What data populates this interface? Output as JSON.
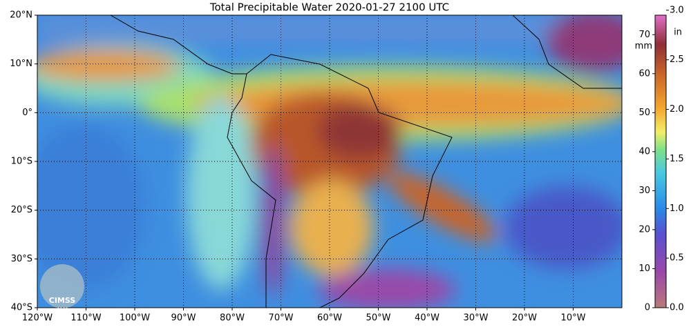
{
  "map": {
    "title": "Total Precipitable Water  2020-01-27 2100 UTC",
    "lonlim": [
      -120,
      0
    ],
    "latlim": [
      -40,
      20
    ],
    "lonticks": [
      {
        "value": -120,
        "label": "120°W"
      },
      {
        "value": -110,
        "label": "110°W"
      },
      {
        "value": -100,
        "label": "100°W"
      },
      {
        "value": -90,
        "label": "90°W"
      },
      {
        "value": -80,
        "label": "80°W"
      },
      {
        "value": -70,
        "label": "70°W"
      },
      {
        "value": -60,
        "label": "60°W"
      },
      {
        "value": -50,
        "label": "50°W"
      },
      {
        "value": -40,
        "label": "40°W"
      },
      {
        "value": -30,
        "label": "30°W"
      },
      {
        "value": -20,
        "label": "20°W"
      },
      {
        "value": -10,
        "label": "10°W"
      }
    ],
    "latticks": [
      {
        "value": 20,
        "label": "20°N"
      },
      {
        "value": 10,
        "label": "10°N"
      },
      {
        "value": 0,
        "label": "0°"
      },
      {
        "value": -10,
        "label": "10°S"
      },
      {
        "value": -20,
        "label": "20°S"
      },
      {
        "value": -30,
        "label": "30°S"
      },
      {
        "value": -40,
        "label": "40°S"
      }
    ],
    "colorbar": {
      "mm_label": "mm",
      "mm_lim": [
        0,
        75
      ],
      "mm_ticks": [
        0,
        10,
        20,
        30,
        40,
        50,
        60,
        70
      ],
      "in_label": "in",
      "in_lim": [
        0,
        2.95
      ],
      "in_ticks": [
        {
          "value": 0,
          "label": "0.0"
        },
        0.5,
        {
          "value": 1,
          "label": "1.0"
        },
        1.5,
        {
          "value": 2,
          "label": "2.0"
        },
        2.5,
        {
          "value": 3,
          "label": "3.0"
        }
      ]
    },
    "logo": "CIMSS"
  }
}
